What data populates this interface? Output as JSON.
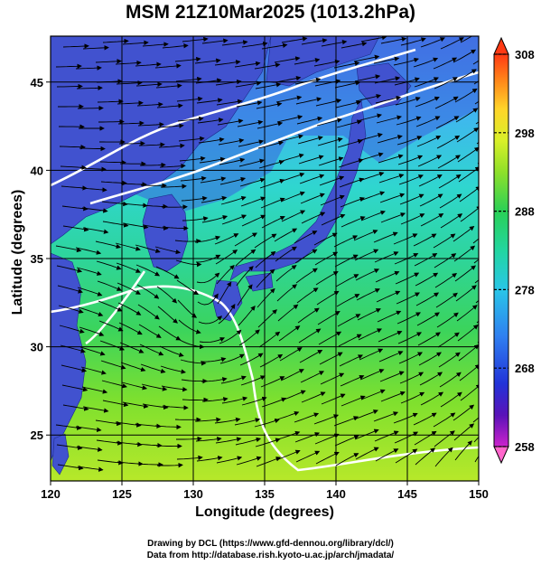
{
  "title": "MSM 21Z10Mar2025 (1013.2hPa)",
  "axes": {
    "x_label": "Longitude (degrees)",
    "y_label": "Latitude  (degrees)",
    "x_ticks": [
      "120",
      "125",
      "130",
      "135",
      "140",
      "145",
      "150"
    ],
    "y_ticks": [
      "25",
      "30",
      "35",
      "40",
      "45"
    ],
    "x_range": [
      120,
      150
    ],
    "y_range": [
      22.4,
      47.6
    ]
  },
  "colorbar": {
    "ticks": [
      "258",
      "268",
      "278",
      "288",
      "298",
      "308"
    ],
    "range": [
      258,
      308
    ],
    "colors": [
      "#ff66cc",
      "#cc22cc",
      "#4a0fb0",
      "#2233d8",
      "#2f7ff0",
      "#29c6e8",
      "#22d6a0",
      "#2ad056",
      "#8fe02a",
      "#d9f02a",
      "#ffd52a",
      "#ff8a1a",
      "#ff3a14"
    ]
  },
  "map": {
    "grid_lines": "on",
    "land_color": "#3f4fcf",
    "cyclone_center_lon_lat": [
      131,
      31
    ]
  },
  "credits": {
    "line1": "Drawing by DCL (https://www.gfd-dennou.org/library/dcl/)",
    "line2": "Data from http://database.rish.kyoto-u.ac.jp/arch/jmadata/"
  }
}
